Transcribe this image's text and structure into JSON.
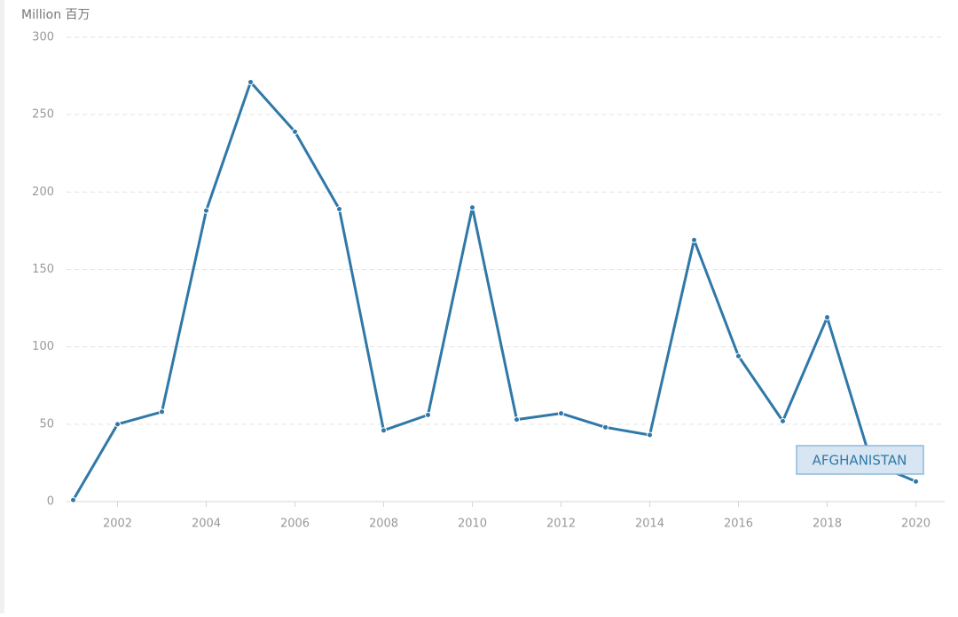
{
  "chart_data": {
    "type": "line",
    "y_axis_label": "Million 百万",
    "x": [
      2001,
      2002,
      2003,
      2004,
      2005,
      2006,
      2007,
      2008,
      2009,
      2010,
      2011,
      2012,
      2013,
      2014,
      2015,
      2016,
      2017,
      2018,
      2019,
      2020
    ],
    "series": [
      {
        "name": "AFGHANISTAN",
        "color": "#2f78a8",
        "values": [
          1,
          50,
          58,
          188,
          271,
          239,
          189,
          46,
          56,
          190,
          53,
          57,
          48,
          43,
          169,
          94,
          52,
          119,
          25,
          13
        ]
      }
    ],
    "xlim": [
      2000.85,
      2020.65
    ],
    "xticks": [
      2002,
      2004,
      2006,
      2008,
      2010,
      2012,
      2014,
      2016,
      2018,
      2020
    ],
    "ylim": [
      0,
      300
    ],
    "yticks": [
      0,
      50,
      100,
      150,
      200,
      250,
      300
    ],
    "grid": true
  }
}
